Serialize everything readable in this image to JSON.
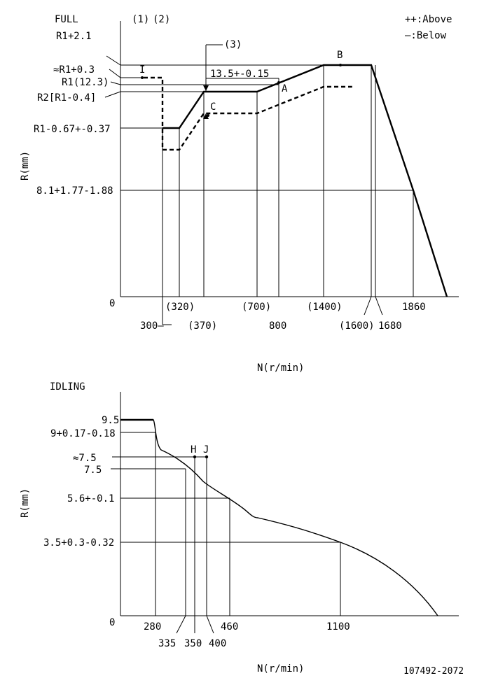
{
  "chart_data": [
    {
      "type": "line",
      "title": "FULL",
      "header_labels": [
        "(1)",
        "(2)"
      ],
      "legend": {
        "above": "++:Above",
        "below": "—:Below",
        "position": "top-right"
      },
      "xlabel": "N(r/min)",
      "ylabel": "R(mm)",
      "origin_label": "0",
      "y_tick_labels": [
        "R1+2.1",
        "≈R1+0.3",
        "R1(12.3)",
        "R2[R1-0.4]",
        "R1-0.67+-0.37",
        "8.1+1.77-1.88"
      ],
      "x_tick_labels": [
        "300—",
        "(320)",
        "(370)",
        "(700)",
        "800",
        "(1400)",
        "(1600)",
        "1680",
        "1860"
      ],
      "annotations": [
        "(3)",
        "13.5+-0.15",
        "A",
        "B",
        "C",
        "I"
      ],
      "series": [
        {
          "style": "solid",
          "x": [
            300,
            320,
            370,
            700,
            1400,
            1600,
            1860
          ],
          "y": [
            11.63,
            11.63,
            12.3,
            12.3,
            14.4,
            14.4,
            8.1
          ]
        },
        {
          "style": "dashed",
          "x": [
            250,
            300,
            300,
            320,
            370,
            700,
            1400,
            1520
          ],
          "y": [
            12.6,
            12.6,
            10.9,
            10.9,
            11.9,
            11.9,
            13.1,
            13.1
          ]
        }
      ],
      "points": [
        {
          "label": "I",
          "x": 260,
          "y": 12.6
        },
        {
          "label": "A",
          "x": 800,
          "y": 13.5
        },
        {
          "label": "B",
          "x": 1450,
          "y": 14.4
        },
        {
          "label": "C",
          "x": 370,
          "y": 12.1
        }
      ],
      "grid": false
    },
    {
      "type": "line",
      "title": "IDLING",
      "xlabel": "N(r/min)",
      "ylabel": "R(mm)",
      "origin_label": "0",
      "y_tick_labels": [
        "9.5",
        "9+0.17-0.18",
        "≈7.5",
        "7.5",
        "5.6+-0.1",
        "3.5+0.3-0.32"
      ],
      "x_tick_labels": [
        "280",
        "335",
        "350",
        "400",
        "460",
        "1100"
      ],
      "annotations": [
        "H",
        "J"
      ],
      "series": [
        {
          "style": "solid",
          "x": [
            0,
            280,
            300,
            335,
            350,
            400,
            460,
            600,
            800,
            1100,
            1300,
            1550
          ],
          "y": [
            9.5,
            9.5,
            8.0,
            7.5,
            7.35,
            6.4,
            5.6,
            4.7,
            4.2,
            3.5,
            2.4,
            0
          ]
        }
      ],
      "points": [
        {
          "label": "H",
          "x": 350,
          "y": 7.5
        },
        {
          "label": "J",
          "x": 400,
          "y": 7.5
        }
      ],
      "grid": false
    }
  ],
  "footer_code": "107492-2072"
}
